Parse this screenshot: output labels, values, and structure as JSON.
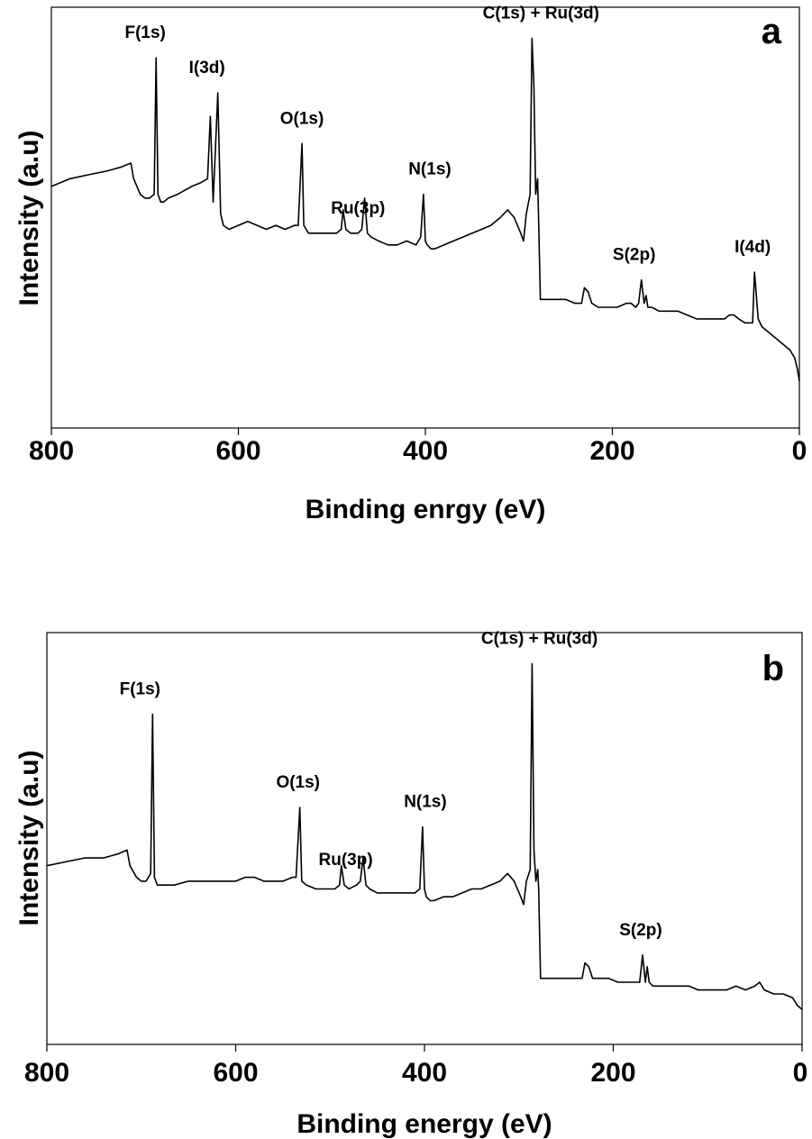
{
  "chart_data": [
    {
      "type": "line",
      "panel_label": "a",
      "xlabel": "Binding enrgy (eV)",
      "ylabel": "Intensity (a.u)",
      "xlim": [
        800,
        0
      ],
      "x_reversed": true,
      "x_ticks": [
        800,
        600,
        400,
        200,
        0
      ],
      "y_ticks_shown": false,
      "grid": false,
      "legend": "none",
      "line_color": "#000000",
      "annotations": [
        {
          "text": "F(1s)",
          "x": 688
        },
        {
          "text": "I(3d)",
          "x": 622
        },
        {
          "text": "O(1s)",
          "x": 532
        },
        {
          "text": "Ru(3p)",
          "x": 472
        },
        {
          "text": "N(1s)",
          "x": 401
        },
        {
          "text": "C(1s) + Ru(3d)",
          "x": 284
        },
        {
          "text": "S(2p)",
          "x": 169
        },
        {
          "text": "I(4d)",
          "x": 50
        }
      ],
      "series": [
        {
          "x": [
            800,
            780,
            760,
            740,
            725,
            715,
            712,
            705,
            700,
            695,
            690,
            688,
            686,
            683,
            680,
            675,
            665,
            650,
            640,
            633,
            630,
            627,
            622,
            619,
            616,
            610,
            600,
            590,
            580,
            570,
            560,
            550,
            540,
            536,
            532,
            530,
            525,
            515,
            505,
            495,
            490,
            488,
            485,
            480,
            472,
            468,
            465,
            462,
            458,
            450,
            440,
            430,
            420,
            410,
            405,
            402,
            400,
            398,
            394,
            390,
            380,
            370,
            360,
            350,
            340,
            330,
            320,
            312,
            305,
            298,
            295,
            292,
            288,
            286,
            284,
            282,
            280,
            279,
            277,
            270,
            260,
            250,
            240,
            233,
            230,
            226,
            222,
            215,
            205,
            195,
            185,
            180,
            175,
            172,
            169,
            166,
            164,
            162,
            158,
            150,
            140,
            130,
            120,
            110,
            100,
            90,
            80,
            75,
            70,
            65,
            58,
            52,
            50,
            48,
            44,
            40,
            30,
            20,
            10,
            5,
            2,
            0
          ],
          "y": [
            62,
            64,
            65,
            66,
            67,
            68,
            64,
            60,
            59,
            59,
            60,
            95,
            60,
            58,
            58,
            59,
            60,
            62,
            63,
            64,
            80,
            58,
            86,
            55,
            52,
            51,
            52,
            53,
            52,
            51,
            52,
            51,
            52,
            52,
            73,
            52,
            50,
            50,
            50,
            50,
            51,
            56,
            51,
            50,
            50,
            51,
            59,
            50,
            49,
            48,
            47,
            47,
            48,
            47,
            49,
            60,
            48,
            47,
            46,
            46,
            47,
            48,
            49,
            50,
            51,
            52,
            54,
            56,
            54,
            50,
            48,
            55,
            60,
            100,
            88,
            60,
            64,
            55,
            33,
            33,
            33,
            33,
            32,
            32,
            36,
            35,
            32,
            31,
            31,
            31,
            32,
            32,
            31,
            32,
            38,
            32,
            34,
            31,
            31,
            30,
            30,
            30,
            29,
            28,
            28,
            28,
            28,
            29,
            29,
            28,
            27,
            27,
            27,
            40,
            28,
            26,
            24,
            22,
            20,
            18,
            15,
            12
          ]
        }
      ]
    },
    {
      "type": "line",
      "panel_label": "b",
      "xlabel": "Binding energy (eV)",
      "ylabel": "Intensity (a.u)",
      "xlim": [
        800,
        0
      ],
      "x_reversed": true,
      "x_ticks": [
        800,
        600,
        400,
        200,
        0
      ],
      "y_ticks_shown": false,
      "grid": false,
      "legend": "none",
      "line_color": "#000000",
      "annotations": [
        {
          "text": "F(1s)",
          "x": 688
        },
        {
          "text": "O(1s)",
          "x": 532
        },
        {
          "text": "Ru(3p)",
          "x": 472
        },
        {
          "text": "N(1s)",
          "x": 401
        },
        {
          "text": "C(1s) + Ru(3d)",
          "x": 284
        },
        {
          "text": "S(2p)",
          "x": 169
        }
      ],
      "series": [
        {
          "x": [
            800,
            780,
            760,
            740,
            725,
            715,
            712,
            705,
            700,
            695,
            690,
            688,
            686,
            683,
            680,
            675,
            665,
            650,
            640,
            630,
            620,
            610,
            600,
            590,
            580,
            570,
            560,
            550,
            540,
            536,
            532,
            530,
            525,
            515,
            505,
            495,
            490,
            488,
            485,
            480,
            472,
            468,
            465,
            462,
            458,
            450,
            440,
            430,
            420,
            410,
            405,
            402,
            400,
            398,
            394,
            390,
            380,
            370,
            360,
            350,
            340,
            330,
            320,
            312,
            305,
            298,
            295,
            292,
            288,
            286,
            284,
            282,
            280,
            279,
            277,
            270,
            260,
            250,
            240,
            233,
            230,
            226,
            222,
            215,
            205,
            195,
            185,
            180,
            175,
            172,
            169,
            166,
            164,
            162,
            158,
            150,
            140,
            130,
            120,
            110,
            100,
            90,
            80,
            70,
            60,
            50,
            45,
            40,
            30,
            20,
            10,
            5,
            0
          ],
          "y": [
            46,
            47,
            48,
            48,
            49,
            50,
            46,
            43,
            42,
            42,
            44,
            85,
            43,
            41,
            41,
            41,
            41,
            42,
            42,
            42,
            42,
            42,
            42,
            43,
            43,
            42,
            42,
            42,
            43,
            43,
            61,
            42,
            41,
            40,
            40,
            40,
            41,
            46,
            41,
            40,
            41,
            42,
            48,
            41,
            40,
            39,
            39,
            39,
            39,
            39,
            40,
            56,
            40,
            38,
            37,
            37,
            38,
            38,
            39,
            40,
            40,
            41,
            42,
            44,
            42,
            38,
            36,
            42,
            45,
            98,
            50,
            42,
            45,
            40,
            17,
            17,
            17,
            17,
            17,
            17,
            21,
            20,
            17,
            17,
            17,
            16,
            16,
            16,
            16,
            16,
            23,
            16,
            20,
            16,
            15,
            15,
            15,
            15,
            15,
            14,
            14,
            14,
            14,
            15,
            14,
            15,
            16,
            14,
            13,
            13,
            12,
            10,
            9
          ]
        }
      ]
    }
  ]
}
